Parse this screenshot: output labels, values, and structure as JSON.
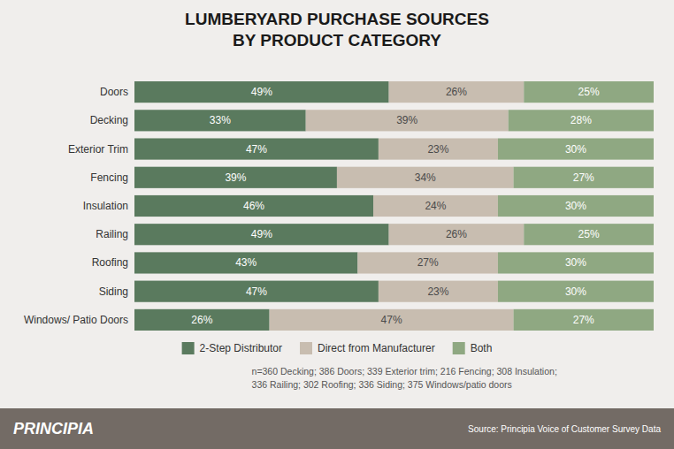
{
  "chart_data": {
    "type": "bar",
    "orientation": "horizontal",
    "stacked": true,
    "data_labels": true,
    "tick_labels": "y",
    "grid": false,
    "legend": "bottom",
    "title": "LUMBERYARD PURCHASE SOURCES\nBY PRODUCT CATEGORY",
    "categories": [
      "Windows/ Patio Doors",
      "Siding",
      "Roofing",
      "Railing",
      "Insulation",
      "Fencing",
      "Exterior Trim",
      "Decking",
      "Doors"
    ],
    "xlim": [
      0,
      100
    ],
    "series": [
      {
        "name": "2-Step Distributor",
        "color": "#5a7a5e",
        "values": [
          26,
          47,
          43,
          49,
          46,
          39,
          47,
          33,
          49
        ],
        "value_labels": [
          "26%",
          "47%",
          "43%",
          "49%",
          "46%",
          "39%",
          "47%",
          "33%",
          "49%"
        ]
      },
      {
        "name": "Direct from Manufacturer",
        "color": "#c8bdb0",
        "values": [
          47,
          23,
          27,
          26,
          24,
          34,
          23,
          39,
          26
        ],
        "value_labels": [
          "47%",
          "23%",
          "27%",
          "26%",
          "24%",
          "34%",
          "23%",
          "39%",
          "26%"
        ]
      },
      {
        "name": "Both",
        "color": "#8fa882",
        "values": [
          27,
          30,
          30,
          25,
          30,
          27,
          30,
          28,
          25
        ],
        "value_labels": [
          "27%",
          "30%",
          "30%",
          "25%",
          "30%",
          "27%",
          "30%",
          "28%",
          "25%"
        ]
      }
    ],
    "annotations": [
      "n=360 Decking; 386 Doors; 339 Exterior trim; 216 Fencing; 308 Insulation;\n336 Railing; 302 Roofing; 336 Siding; 375 Windows/patio doors",
      "PRINCIPIA",
      "Source: Principia Voice of Customer Survey Data"
    ]
  }
}
